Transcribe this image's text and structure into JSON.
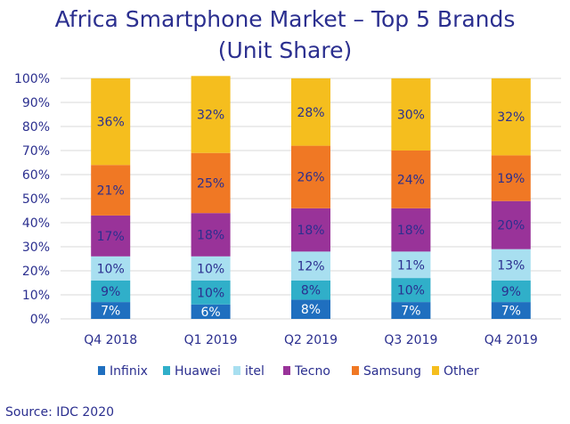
{
  "chart_data": {
    "type": "bar",
    "stacked": true,
    "title": "Africa Smartphone Market – Top 5 Brands",
    "subtitle": "(Unit Share)",
    "categories": [
      "Q4 2018",
      "Q1 2019",
      "Q2 2019",
      "Q3 2019",
      "Q4 2019"
    ],
    "y_ticks": [
      "0%",
      "10%",
      "20%",
      "30%",
      "40%",
      "50%",
      "60%",
      "70%",
      "80%",
      "90%",
      "100%"
    ],
    "ylim": [
      0,
      100
    ],
    "grid": true,
    "legend_position": "bottom",
    "series": [
      {
        "name": "Infinix",
        "color": "#1f6fbf",
        "label_color": "#ffffff",
        "values": [
          7,
          6,
          8,
          7,
          7
        ]
      },
      {
        "name": "Huawei",
        "color": "#30afc9",
        "label_color": "#2b2f8f",
        "values": [
          9,
          10,
          8,
          10,
          9
        ]
      },
      {
        "name": "itel",
        "color": "#a8dff0",
        "label_color": "#2b2f8f",
        "values": [
          10,
          10,
          12,
          11,
          13
        ]
      },
      {
        "name": "Tecno",
        "color": "#993399",
        "label_color": "#2b2f8f",
        "values": [
          17,
          18,
          18,
          18,
          20
        ]
      },
      {
        "name": "Samsung",
        "color": "#f07824",
        "label_color": "#2b2f8f",
        "values": [
          21,
          25,
          26,
          24,
          19
        ]
      },
      {
        "name": "Other",
        "color": "#f5be1e",
        "label_color": "#2b2f8f",
        "values": [
          36,
          32,
          28,
          30,
          32
        ]
      }
    ]
  },
  "source": "Source: IDC 2020"
}
